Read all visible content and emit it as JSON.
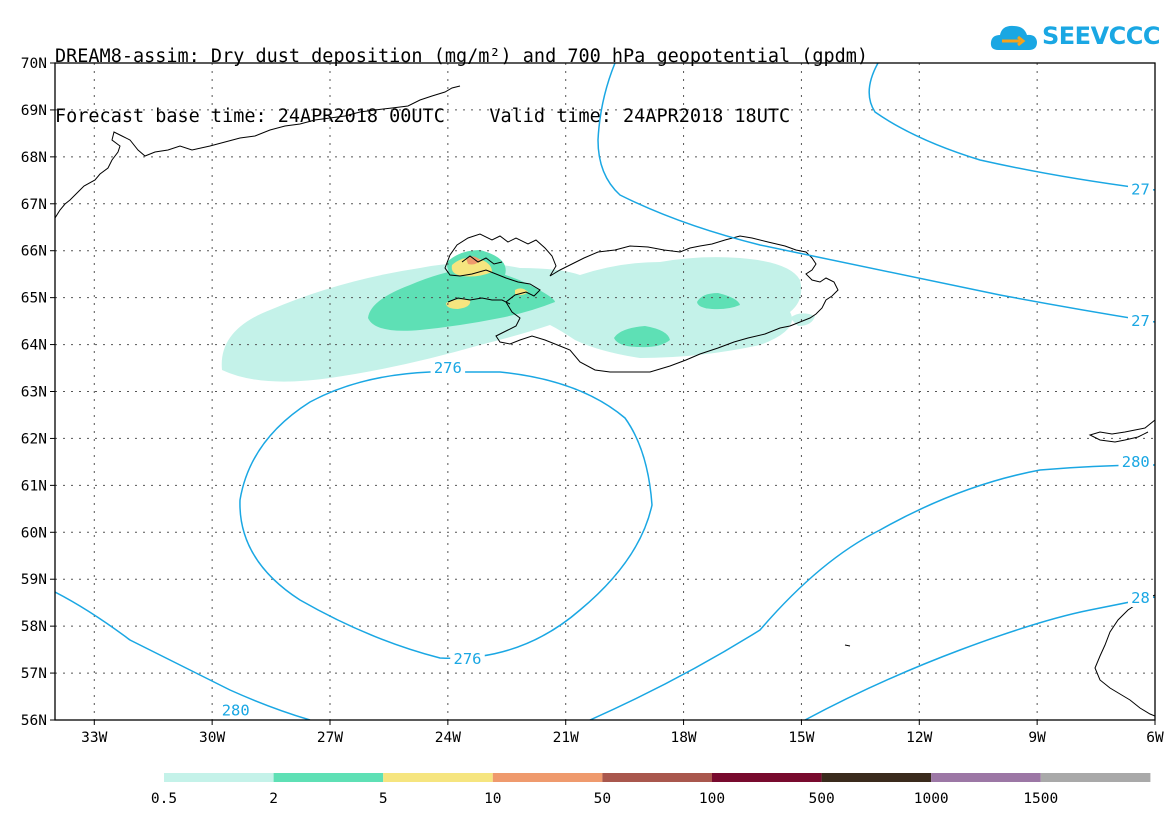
{
  "header": {
    "title_line1": "DREAM8-assim: Dry dust deposition (mg/m²) and 700 hPa geopotential (gpdm)",
    "title_line2": "Forecast base time: 24APR2018 00UTC    Valid time: 24APR2018 18UTC"
  },
  "logo": {
    "text": "SEEVCCC",
    "icon": "cloud-logo-icon",
    "color": "#1aa7e3"
  },
  "map": {
    "lon_range": [
      -34.0,
      -6.0
    ],
    "lat_range": [
      56,
      70
    ],
    "grid": true,
    "lat_labels": [
      "56N",
      "57N",
      "58N",
      "59N",
      "60N",
      "61N",
      "62N",
      "63N",
      "64N",
      "65N",
      "66N",
      "67N",
      "68N",
      "69N",
      "70N"
    ],
    "lon_labels": [
      {
        "lon": -33,
        "text": "33W"
      },
      {
        "lon": -30,
        "text": "30W"
      },
      {
        "lon": -27,
        "text": "27W"
      },
      {
        "lon": -24,
        "text": "24W"
      },
      {
        "lon": -21,
        "text": "21W"
      },
      {
        "lon": -18,
        "text": "18W"
      },
      {
        "lon": -15,
        "text": "15W"
      },
      {
        "lon": -12,
        "text": "12W"
      },
      {
        "lon": -9,
        "text": "9W"
      },
      {
        "lon": -6,
        "text": "6W"
      }
    ],
    "contour_color": "#1aa7e3",
    "contour_labels": [
      {
        "text": "276",
        "lon": -24.0,
        "lat": 63.5
      },
      {
        "text": "276",
        "lon": -23.5,
        "lat": 57.3
      },
      {
        "text": "280",
        "lon": -29.4,
        "lat": 56.2
      },
      {
        "text": "280",
        "lon": -6.3,
        "lat": 61.5
      },
      {
        "text": "27",
        "lon": -6.3,
        "lat": 67.3
      },
      {
        "text": "27",
        "lon": -6.3,
        "lat": 64.5
      },
      {
        "text": "28",
        "lon": -6.3,
        "lat": 58.6
      }
    ]
  },
  "legend": {
    "colors": [
      "#c4f2e9",
      "#5ee0b5",
      "#f6e57f",
      "#ef9a6d",
      "#a9574d",
      "#780a2e",
      "#3a2a1c",
      "#9c77a5",
      "#a9a9a9"
    ],
    "labels": [
      "0.5",
      "2",
      "5",
      "10",
      "50",
      "100",
      "500",
      "1000",
      "1500"
    ]
  }
}
